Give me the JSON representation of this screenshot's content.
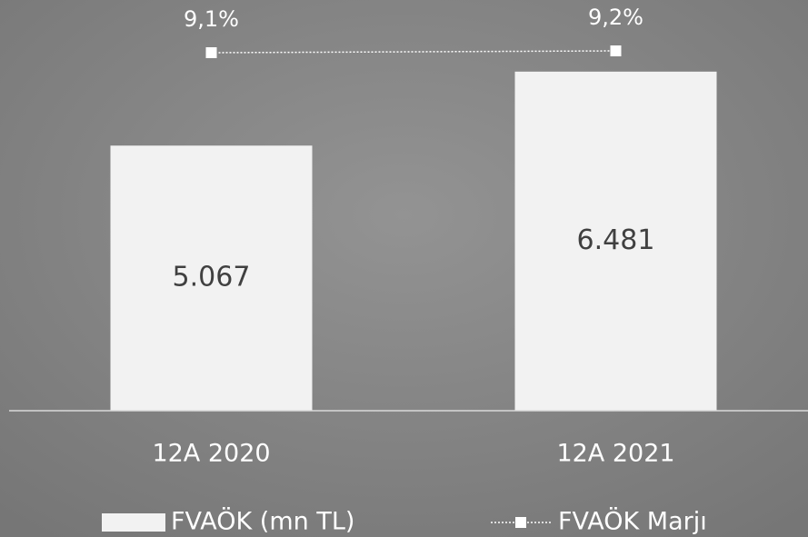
{
  "chart_data": {
    "type": "bar",
    "categories": [
      "12A 2020",
      "12A 2021"
    ],
    "series": [
      {
        "name": "FVAÖK (mn TL)",
        "type": "bar",
        "color": "#f2f2f2",
        "values": [
          5067,
          6481
        ],
        "value_labels": [
          "5.067",
          "6.481"
        ]
      },
      {
        "name": "FVAÖK Marjı",
        "type": "line",
        "axis": "y2",
        "color": "#ffffff",
        "values": [
          9.1,
          9.2
        ],
        "value_labels": [
          "9,1%",
          "9,2%"
        ]
      }
    ],
    "ylim": [
      0,
      7850
    ],
    "y2lim": [
      -10.6,
      12.0
    ],
    "grid": false,
    "legend": "bottom"
  }
}
